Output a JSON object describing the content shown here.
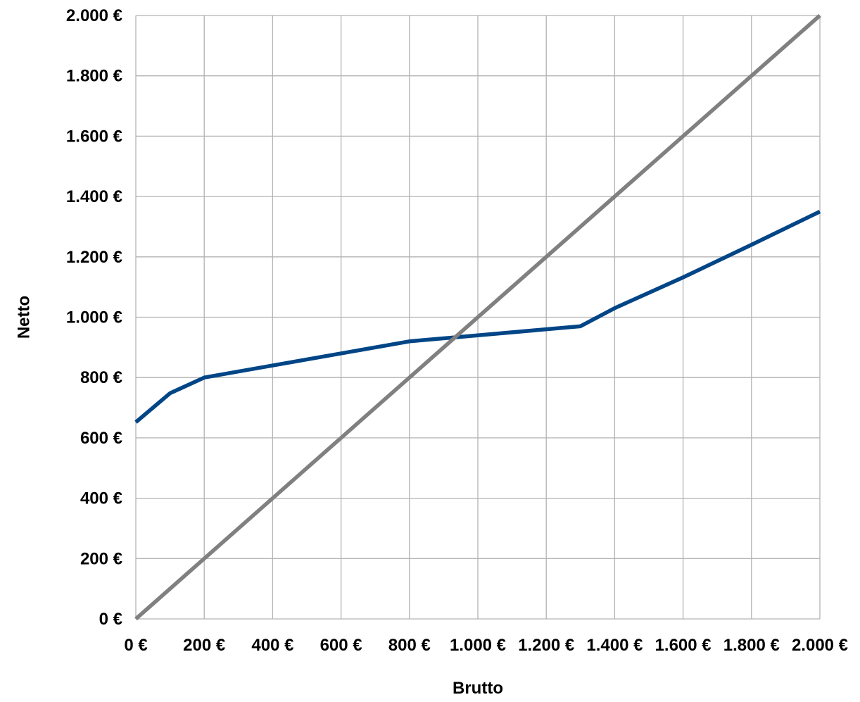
{
  "chart_data": {
    "type": "line",
    "title": "",
    "xlabel": "Brutto",
    "ylabel": "Netto",
    "xlim": [
      0,
      2000
    ],
    "ylim": [
      0,
      2000
    ],
    "grid": true,
    "legend": "none",
    "x_ticks": [
      0,
      200,
      400,
      600,
      800,
      1000,
      1200,
      1400,
      1600,
      1800,
      2000
    ],
    "x_tick_labels": [
      "0 €",
      "200 €",
      "400 €",
      "600 €",
      "800 €",
      "1.000 €",
      "1.200 €",
      "1.400 €",
      "1.600 €",
      "1.800 €",
      "2.000 €"
    ],
    "y_ticks": [
      0,
      200,
      400,
      600,
      800,
      1000,
      1200,
      1400,
      1600,
      1800,
      2000
    ],
    "y_tick_labels": [
      "0 €",
      "200 €",
      "400 €",
      "600 €",
      "800 €",
      "1.000 €",
      "1.200 €",
      "1.400 €",
      "1.600 €",
      "1.800 €",
      "2.000 €"
    ],
    "series": [
      {
        "color": "#004586",
        "points": [
          [
            0,
            652
          ],
          [
            100,
            748
          ],
          [
            200,
            800
          ],
          [
            400,
            840
          ],
          [
            600,
            880
          ],
          [
            800,
            920
          ],
          [
            1000,
            940
          ],
          [
            1200,
            960
          ],
          [
            1300,
            970
          ],
          [
            1400,
            1030
          ],
          [
            1600,
            1132
          ],
          [
            1800,
            1240
          ],
          [
            2000,
            1350
          ]
        ]
      },
      {
        "color": "#808080",
        "points": [
          [
            0,
            0
          ],
          [
            2000,
            2000
          ]
        ]
      }
    ]
  }
}
